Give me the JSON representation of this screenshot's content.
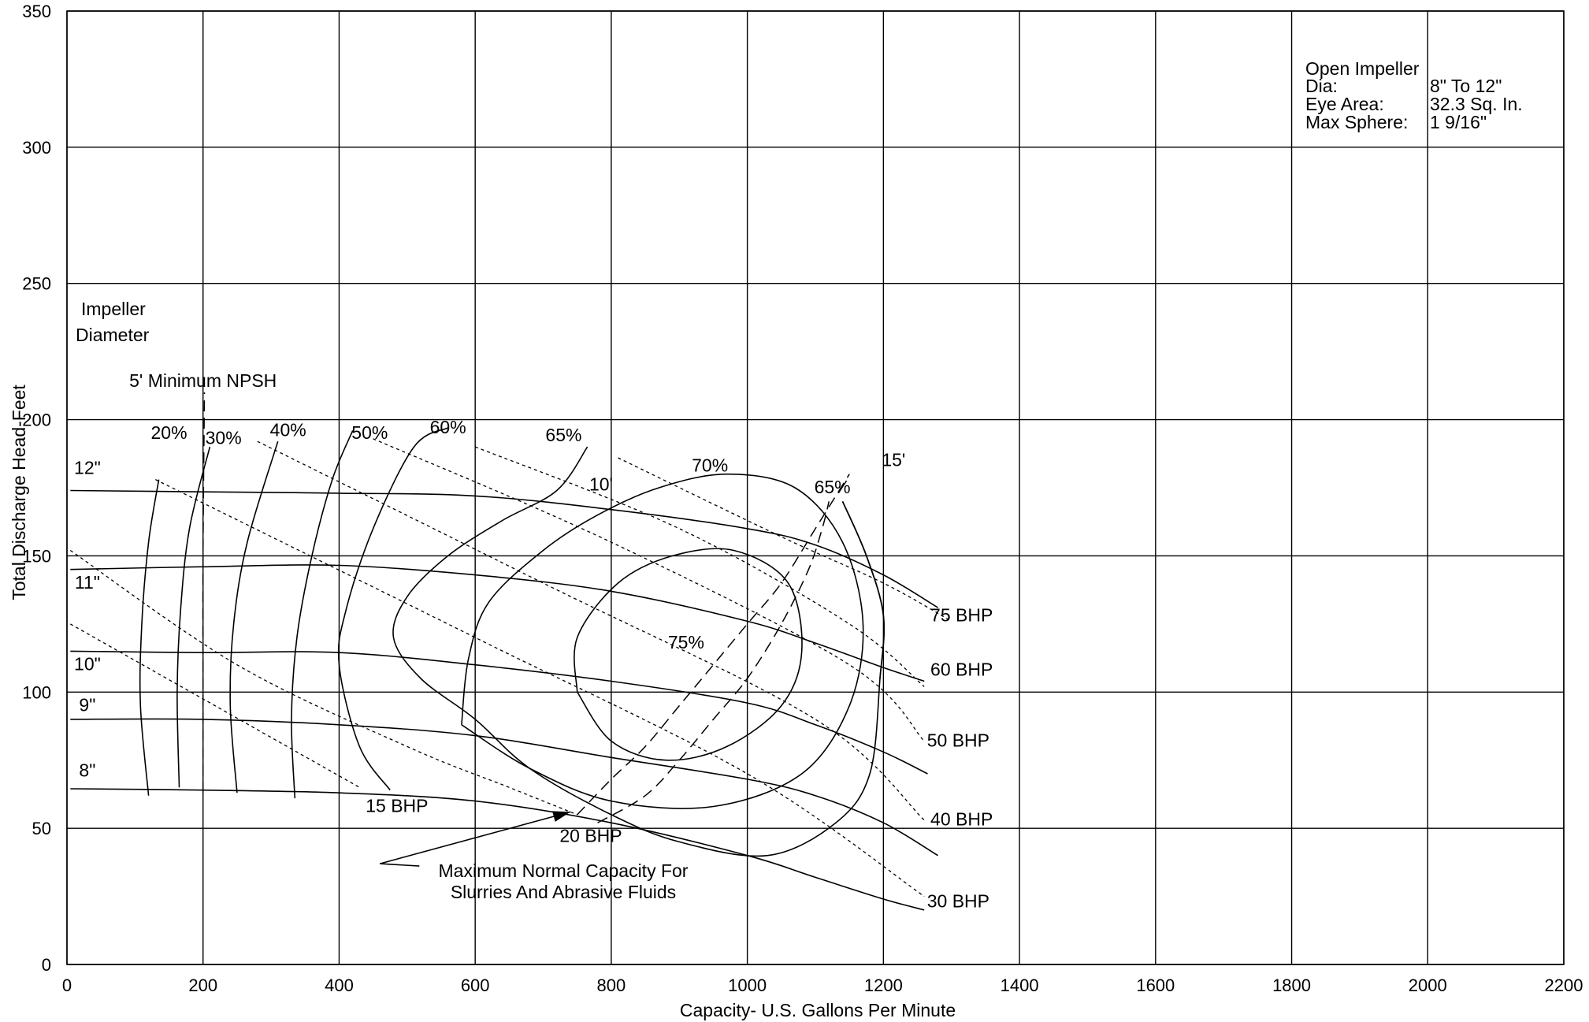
{
  "chart_data": {
    "type": "line",
    "xlabel": "Capacity- U.S. Gallons Per Minute",
    "ylabel": "Total Discharge Head-Feet",
    "xlim": [
      0,
      2200
    ],
    "ylim": [
      0,
      350
    ],
    "x_ticks": [
      0,
      200,
      400,
      600,
      800,
      1000,
      1200,
      1400,
      1600,
      1800,
      2000,
      2200
    ],
    "y_ticks": [
      0,
      50,
      100,
      150,
      200,
      250,
      300,
      350
    ],
    "grid": true,
    "spec_box": {
      "title": "Open Impeller",
      "rows": [
        {
          "label": "Dia:",
          "value": "8\" To 12\""
        },
        {
          "label": "Eye Area:",
          "value": "32.3 Sq. In."
        },
        {
          "label": "Max Sphere:",
          "value": "1 9/16\""
        }
      ]
    },
    "impeller_diameter_title": [
      "Impeller",
      "Diameter"
    ],
    "head_curves": [
      {
        "name": "12\"",
        "label_at": [
          30,
          180
        ],
        "points": [
          [
            5,
            174
          ],
          [
            200,
            173.5
          ],
          [
            400,
            173
          ],
          [
            600,
            172
          ],
          [
            800,
            167
          ],
          [
            1000,
            160
          ],
          [
            1100,
            154
          ],
          [
            1200,
            143
          ],
          [
            1280,
            131
          ]
        ]
      },
      {
        "name": "11\"",
        "label_at": [
          30,
          138
        ],
        "points": [
          [
            5,
            145
          ],
          [
            200,
            146
          ],
          [
            400,
            146.5
          ],
          [
            600,
            143
          ],
          [
            800,
            137
          ],
          [
            1000,
            126
          ],
          [
            1100,
            118
          ],
          [
            1200,
            109
          ],
          [
            1260,
            104
          ]
        ]
      },
      {
        "name": "10\"",
        "label_at": [
          30,
          108
        ],
        "points": [
          [
            5,
            115
          ],
          [
            200,
            114.5
          ],
          [
            400,
            114.5
          ],
          [
            600,
            110
          ],
          [
            800,
            104
          ],
          [
            1000,
            96
          ],
          [
            1100,
            88
          ],
          [
            1200,
            78
          ],
          [
            1265,
            70
          ]
        ]
      },
      {
        "name": "9\"",
        "label_at": [
          30,
          93
        ],
        "points": [
          [
            5,
            90
          ],
          [
            200,
            90
          ],
          [
            400,
            88
          ],
          [
            600,
            84
          ],
          [
            800,
            76
          ],
          [
            1000,
            68
          ],
          [
            1100,
            62
          ],
          [
            1200,
            52
          ],
          [
            1280,
            40
          ]
        ]
      },
      {
        "name": "8\"",
        "label_at": [
          30,
          69
        ],
        "points": [
          [
            5,
            64.5
          ],
          [
            200,
            64
          ],
          [
            400,
            63
          ],
          [
            600,
            60
          ],
          [
            800,
            52
          ],
          [
            1000,
            40
          ],
          [
            1100,
            32
          ],
          [
            1200,
            24
          ],
          [
            1260,
            20
          ]
        ]
      }
    ],
    "efficiency_curves": [
      {
        "name": "20%",
        "label_at": [
          150,
          193
        ],
        "points": [
          [
            120,
            62
          ],
          [
            108,
            95
          ],
          [
            110,
            125
          ],
          [
            120,
            155
          ],
          [
            135,
            178
          ]
        ]
      },
      {
        "name": "30%",
        "label_at": [
          230,
          191
        ],
        "points": [
          [
            165,
            65
          ],
          [
            162,
            100
          ],
          [
            167,
            130
          ],
          [
            180,
            160
          ],
          [
            210,
            190
          ]
        ]
      },
      {
        "name": "40%",
        "label_at": [
          325,
          194
        ],
        "points": [
          [
            250,
            63
          ],
          [
            240,
            95
          ],
          [
            245,
            125
          ],
          [
            265,
            155
          ],
          [
            310,
            192
          ]
        ]
      },
      {
        "name": "50%",
        "label_at": [
          445,
          193
        ],
        "points": [
          [
            335,
            61
          ],
          [
            330,
            90
          ],
          [
            338,
            120
          ],
          [
            360,
            150
          ],
          [
            390,
            178
          ],
          [
            420,
            196
          ]
        ]
      },
      {
        "name": "60%",
        "label_at": [
          560,
          195
        ],
        "points": [
          [
            475,
            64
          ],
          [
            430,
            80
          ],
          [
            400,
            110
          ],
          [
            410,
            130
          ],
          [
            450,
            160
          ],
          [
            510,
            190
          ],
          [
            560,
            197
          ]
        ]
      },
      {
        "name": "65%",
        "label_at": [
          730,
          192
        ],
        "points": [
          [
            1140,
            170
          ],
          [
            1175,
            150
          ],
          [
            1200,
            128
          ],
          [
            1195,
            105
          ],
          [
            1180,
            70
          ],
          [
            1130,
            52
          ],
          [
            1030,
            40
          ],
          [
            900,
            45
          ],
          [
            800,
            55
          ],
          [
            680,
            72
          ],
          [
            600,
            90
          ],
          [
            520,
            105
          ],
          [
            480,
            120
          ],
          [
            500,
            135
          ],
          [
            560,
            150
          ],
          [
            640,
            163
          ],
          [
            720,
            174
          ],
          [
            765,
            190
          ]
        ]
      },
      {
        "name": "70%",
        "label_at": [
          945,
          181
        ],
        "points": [
          [
            580,
            88
          ],
          [
            680,
            72
          ],
          [
            800,
            60
          ],
          [
            950,
            58
          ],
          [
            1080,
            70
          ],
          [
            1150,
            95
          ],
          [
            1170,
            125
          ],
          [
            1140,
            155
          ],
          [
            1070,
            175
          ],
          [
            970,
            180
          ],
          [
            870,
            175
          ],
          [
            780,
            165
          ],
          [
            700,
            152
          ],
          [
            620,
            133
          ],
          [
            590,
            112
          ],
          [
            580,
            88
          ]
        ]
      },
      {
        "name": "65%",
        "label_at": [
          1125,
          173
        ],
        "points": [
          [
            1140,
            170
          ],
          [
            1175,
            150
          ],
          [
            1200,
            128
          ],
          [
            1195,
            105
          ]
        ]
      },
      {
        "name": "75%",
        "label_at": [
          910,
          116
        ],
        "points": [
          [
            750,
            100
          ],
          [
            800,
            82
          ],
          [
            880,
            75
          ],
          [
            970,
            80
          ],
          [
            1050,
            95
          ],
          [
            1080,
            115
          ],
          [
            1060,
            140
          ],
          [
            980,
            152
          ],
          [
            890,
            150
          ],
          [
            810,
            140
          ],
          [
            750,
            120
          ],
          [
            750,
            100
          ]
        ]
      }
    ],
    "npsh_curves": [
      {
        "name": "5' Minimum NPSH",
        "label_at": [
          200,
          212
        ],
        "points": [
          [
            200,
            63
          ],
          [
            200,
            100
          ],
          [
            200,
            150
          ],
          [
            202,
            210
          ]
        ]
      },
      {
        "name": "10'",
        "label_at": [
          785,
          174
        ],
        "points": [
          [
            750,
            55
          ],
          [
            800,
            68
          ],
          [
            850,
            80
          ],
          [
            900,
            95
          ],
          [
            950,
            110
          ],
          [
            1000,
            125
          ],
          [
            1050,
            140
          ],
          [
            1100,
            160
          ],
          [
            1150,
            180
          ]
        ]
      },
      {
        "name": "15'",
        "label_at": [
          1215,
          183
        ],
        "points": [
          [
            780,
            52
          ],
          [
            850,
            62
          ],
          [
            900,
            75
          ],
          [
            950,
            90
          ],
          [
            1000,
            105
          ],
          [
            1050,
            125
          ],
          [
            1090,
            145
          ],
          [
            1110,
            160
          ],
          [
            1120,
            170
          ]
        ]
      }
    ],
    "bhp_lines": [
      {
        "name": "15 BHP",
        "label_at": [
          485,
          56
        ],
        "points": [
          [
            5,
            125
          ],
          [
            430,
            65
          ]
        ]
      },
      {
        "name": "20 BHP",
        "label_at": [
          770,
          45
        ],
        "points": [
          [
            5,
            152
          ],
          [
            250,
            110
          ],
          [
            500,
            80
          ],
          [
            650,
            65
          ],
          [
            750,
            55
          ]
        ]
      },
      {
        "name": "30 BHP",
        "label_at": [
          1310,
          21
        ],
        "points": [
          [
            130,
            178
          ],
          [
            600,
            120
          ],
          [
            1000,
            70
          ],
          [
            1260,
            25
          ]
        ]
      },
      {
        "name": "40 BHP",
        "label_at": [
          1315,
          51
        ],
        "points": [
          [
            280,
            192
          ],
          [
            700,
            140
          ],
          [
            1100,
            90
          ],
          [
            1260,
            53
          ]
        ]
      },
      {
        "name": "50 BHP",
        "label_at": [
          1310,
          80
        ],
        "points": [
          [
            450,
            193
          ],
          [
            800,
            155
          ],
          [
            1150,
            110
          ],
          [
            1260,
            82
          ]
        ]
      },
      {
        "name": "60 BHP",
        "label_at": [
          1315,
          106
        ],
        "points": [
          [
            600,
            190
          ],
          [
            900,
            160
          ],
          [
            1150,
            125
          ],
          [
            1260,
            102
          ]
        ]
      },
      {
        "name": "75 BHP",
        "label_at": [
          1315,
          126
        ],
        "points": [
          [
            810,
            186
          ],
          [
            1050,
            157
          ],
          [
            1200,
            140
          ],
          [
            1300,
            126
          ]
        ]
      }
    ],
    "annotation": {
      "lines": [
        "Maximum Normal Capacity For",
        "Slurries And Abrasive Fluids"
      ],
      "arrow_from": [
        460,
        37
      ],
      "arrow_to": [
        740,
        56
      ]
    }
  }
}
